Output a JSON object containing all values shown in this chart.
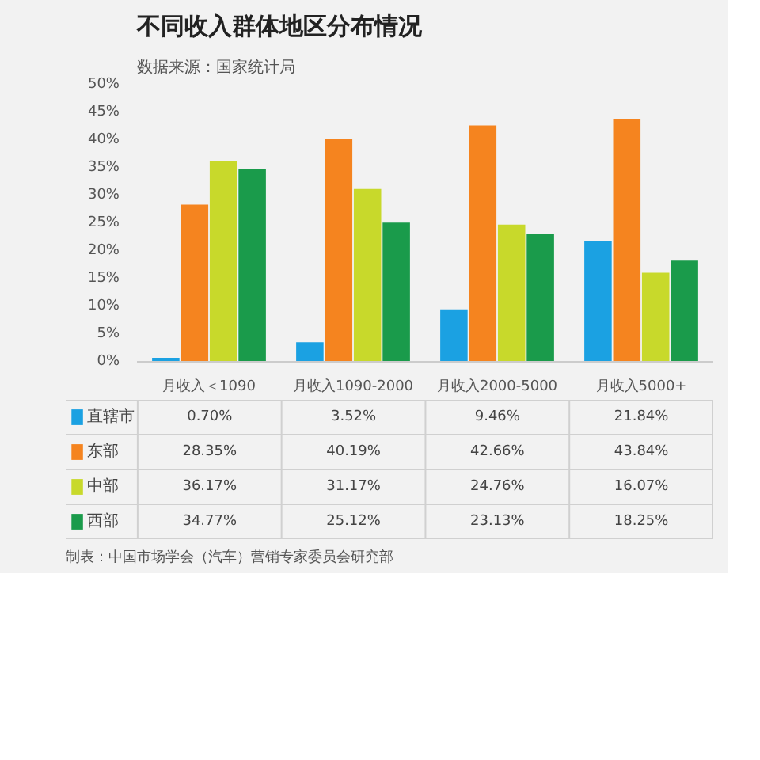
{
  "chart_data": {
    "type": "bar",
    "title": "不同收入群体地区分布情况",
    "annotations": [
      "数据来源：国家统计局",
      "制表：中国市场学会（汽车）营销专家委员会研究部"
    ],
    "categories": [
      "月收入＜1090",
      "月收入1090-2000",
      "月收入2000-5000",
      "月收入5000+"
    ],
    "series": [
      {
        "name": "直辖市",
        "color": "#1ba1e2",
        "values": [
          0.7,
          3.52,
          9.46,
          21.84
        ],
        "value_labels": [
          "0.70%",
          "3.52%",
          "9.46%",
          "21.84%"
        ]
      },
      {
        "name": "东部",
        "color": "#f5841f",
        "values": [
          28.35,
          40.19,
          42.66,
          43.84
        ],
        "value_labels": [
          "28.35%",
          "40.19%",
          "42.66%",
          "43.84%"
        ]
      },
      {
        "name": "中部",
        "color": "#c8d92b",
        "values": [
          36.17,
          31.17,
          24.76,
          16.07
        ],
        "value_labels": [
          "36.17%",
          "31.17%",
          "24.76%",
          "16.07%"
        ]
      },
      {
        "name": "西部",
        "color": "#1a9b4b",
        "values": [
          34.77,
          25.12,
          23.13,
          18.25
        ],
        "value_labels": [
          "34.77%",
          "25.12%",
          "23.13%",
          "18.25%"
        ]
      }
    ],
    "ylim": [
      0,
      50
    ],
    "yticks": [
      {
        "value": 0,
        "label": "0%"
      },
      {
        "value": 5,
        "label": "5%"
      },
      {
        "value": 10,
        "label": "10%"
      },
      {
        "value": 15,
        "label": "15%"
      },
      {
        "value": 20,
        "label": "20%"
      },
      {
        "value": 25,
        "label": "25%"
      },
      {
        "value": 30,
        "label": "30%"
      },
      {
        "value": 35,
        "label": "35%"
      },
      {
        "value": 40,
        "label": "40%"
      },
      {
        "value": 45,
        "label": "45%"
      },
      {
        "value": 50,
        "label": "50%"
      }
    ],
    "grid": false,
    "legend": "bottom left"
  }
}
